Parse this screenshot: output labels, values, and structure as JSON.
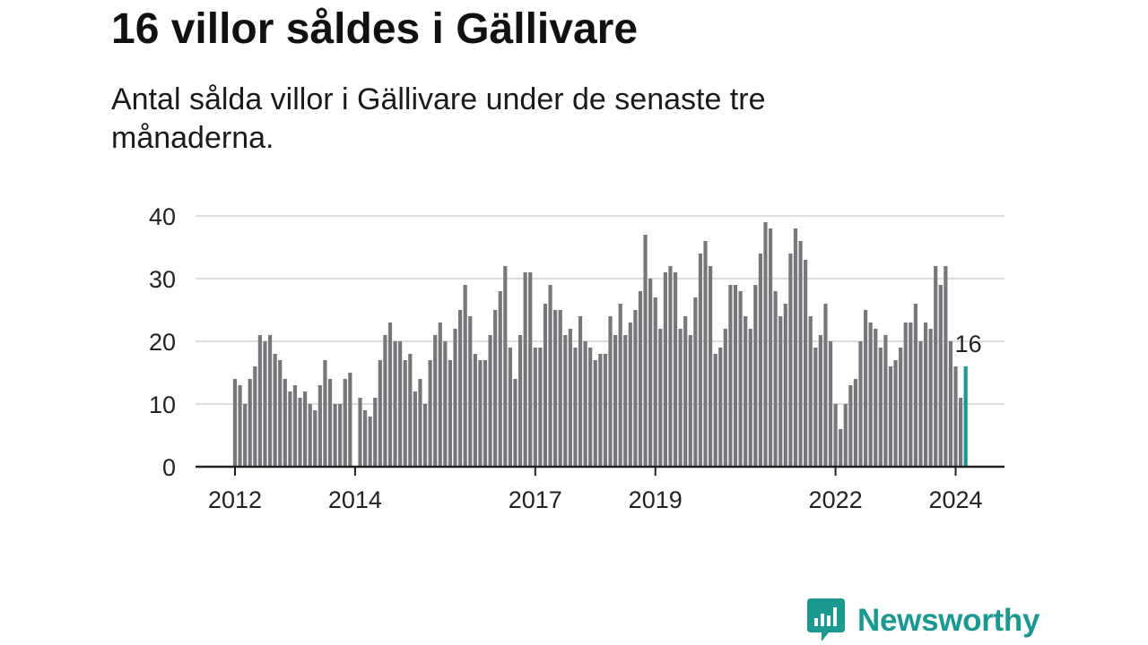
{
  "title": "16 villor såldes i Gällivare",
  "subtitle": "Antal sålda villor i Gällivare under de senaste tre månaderna.",
  "brand": {
    "name": "Newsworthy",
    "icon": "newsworthy-logo-icon",
    "color": "#1b9990"
  },
  "colors": {
    "bar": "#76767b",
    "highlight": "#1b9990",
    "grid": "#dcdcdc",
    "axis": "#222222"
  },
  "chart_data": {
    "type": "bar",
    "title": "16 villor såldes i Gällivare",
    "subtitle": "Antal sålda villor i Gällivare under de senaste tre månaderna.",
    "xlabel": "",
    "ylabel": "",
    "ylim": [
      0,
      40
    ],
    "yticks": [
      0,
      10,
      20,
      30,
      40
    ],
    "grid": true,
    "start": {
      "year": 2012,
      "month": 1
    },
    "x_tick_labels": [
      {
        "label": "2012",
        "year": 2012
      },
      {
        "label": "2014",
        "year": 2014
      },
      {
        "label": "2017",
        "year": 2017
      },
      {
        "label": "2019",
        "year": 2019
      },
      {
        "label": "2022",
        "year": 2022
      },
      {
        "label": "2024",
        "year": 2024
      }
    ],
    "values": [
      14,
      13,
      10,
      14,
      16,
      21,
      20,
      21,
      18,
      17,
      14,
      12,
      13,
      11,
      12,
      10,
      9,
      13,
      17,
      14,
      10,
      10,
      14,
      15,
      0,
      11,
      9,
      8,
      11,
      17,
      21,
      23,
      20,
      20,
      17,
      18,
      12,
      14,
      10,
      17,
      21,
      23,
      20,
      17,
      22,
      25,
      29,
      24,
      18,
      17,
      17,
      21,
      25,
      28,
      32,
      19,
      14,
      21,
      31,
      31,
      19,
      19,
      26,
      29,
      25,
      25,
      21,
      22,
      19,
      24,
      20,
      19,
      17,
      18,
      18,
      24,
      21,
      26,
      21,
      23,
      25,
      28,
      37,
      30,
      27,
      22,
      31,
      32,
      31,
      22,
      24,
      21,
      27,
      34,
      36,
      32,
      18,
      19,
      22,
      29,
      29,
      28,
      24,
      22,
      29,
      34,
      39,
      38,
      28,
      24,
      26,
      34,
      38,
      36,
      33,
      24,
      19,
      21,
      26,
      20,
      10,
      6,
      10,
      13,
      14,
      20,
      25,
      23,
      22,
      19,
      21,
      16,
      17,
      19,
      23,
      23,
      26,
      20,
      23,
      22,
      32,
      29,
      32,
      20,
      16,
      11,
      16
    ],
    "highlight_index": 146,
    "highlight_label": "16"
  }
}
